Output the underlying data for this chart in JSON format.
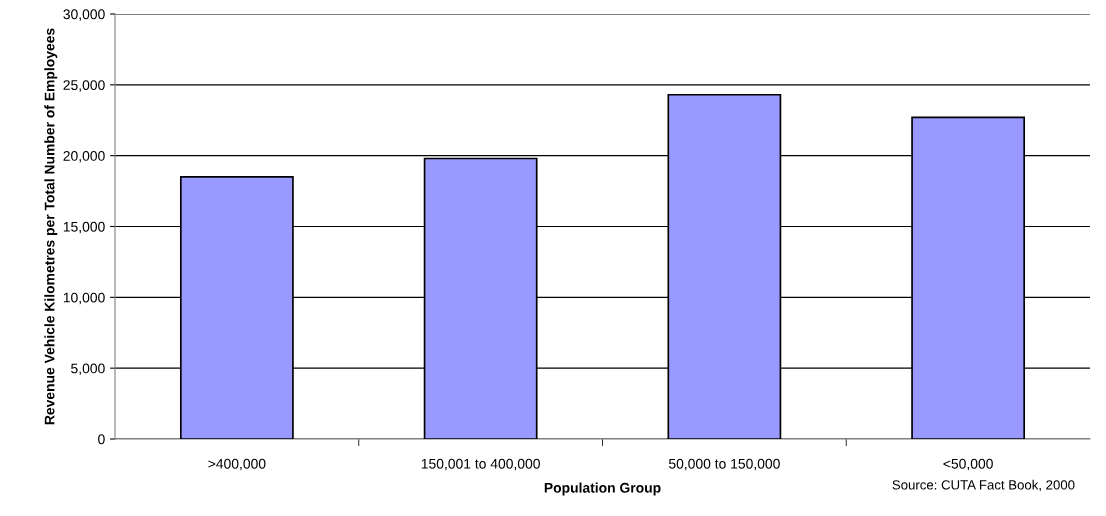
{
  "chart_data": {
    "type": "bar",
    "xlabel": "Population Group",
    "ylabel": "Revenue Vehicle Kilometres per Total Number of Employees",
    "categories": [
      ">400,000",
      "150,001 to 400,000",
      "50,000 to 150,000",
      "<50,000"
    ],
    "values": [
      18500,
      19800,
      24300,
      22700
    ],
    "color": "#9999ff",
    "ylim": [
      0,
      30000
    ],
    "yticks": [
      {
        "value": 0,
        "label": "0"
      },
      {
        "value": 5000,
        "label": "5,000"
      },
      {
        "value": 10000,
        "label": "10,000"
      },
      {
        "value": 15000,
        "label": "15,000"
      },
      {
        "value": 20000,
        "label": "20,000"
      },
      {
        "value": 25000,
        "label": "25,000"
      },
      {
        "value": 30000,
        "label": "30,000"
      }
    ],
    "grid": "y",
    "legend": false,
    "annotations": [
      "Source: CUTA Fact Book, 2000"
    ]
  }
}
